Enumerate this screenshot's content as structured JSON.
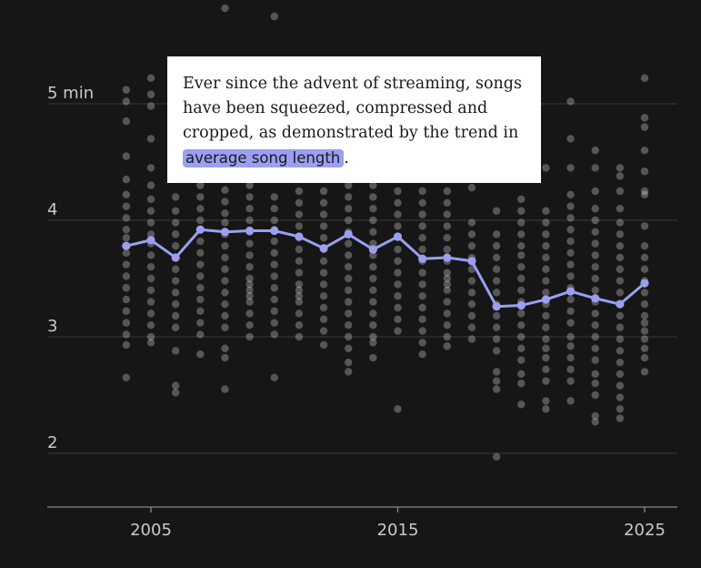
{
  "annotation": {
    "text_before": "Ever since the advent of streaming, songs have been squeezed, compressed and cropped, as demonstrated by the trend in ",
    "highlight": "average song length",
    "text_after": "."
  },
  "colors": {
    "background": "#161616",
    "line": "#9b9ff0",
    "dots": "#ffffff",
    "gridline": "#3a3a3a",
    "axis": "#8a8a8a",
    "text": "#c9c9c9"
  },
  "chart_data": {
    "type": "line",
    "title": "",
    "xlabel": "",
    "ylabel": "",
    "xlim": [
      2000,
      2026
    ],
    "ylim": [
      1.45,
      5.55
    ],
    "yticks": [
      5,
      4,
      3,
      2
    ],
    "ytick_labels": [
      "5 min",
      "4",
      "3",
      "2"
    ],
    "xticks": [
      2005,
      2015,
      2025
    ],
    "xtick_labels": [
      "2005",
      "2015",
      "2025"
    ],
    "grid": "horizontal",
    "series": [
      {
        "type": "line",
        "x": [
          2004,
          2005,
          2006,
          2007,
          2008,
          2009,
          2010,
          2011,
          2012,
          2013,
          2014,
          2015,
          2016,
          2017,
          2018,
          2019,
          2020,
          2021,
          2022,
          2023,
          2024,
          2025
        ],
        "values": [
          3.78,
          3.83,
          3.68,
          3.92,
          3.9,
          3.91,
          3.91,
          3.86,
          3.76,
          3.88,
          3.75,
          3.86,
          3.67,
          3.68,
          3.65,
          3.26,
          3.27,
          3.32,
          3.39,
          3.33,
          3.28,
          3.46
        ]
      },
      {
        "type": "scatter",
        "points_by_year": [
          {
            "x": 2004,
            "y": [
              5.12,
              5.02,
              4.85,
              4.55,
              4.35,
              4.22,
              4.12,
              4.02,
              3.92,
              3.85,
              3.72,
              3.62,
              3.52,
              3.42,
              3.32,
              3.22,
              3.12,
              3.02,
              2.93,
              2.65
            ]
          },
          {
            "x": 2005,
            "y": [
              5.22,
              5.08,
              4.98,
              4.7,
              4.45,
              4.3,
              4.18,
              4.08,
              3.98,
              3.88,
              3.8,
              3.7,
              3.6,
              3.5,
              3.4,
              3.3,
              3.2,
              3.1,
              3.0,
              2.95
            ]
          },
          {
            "x": 2006,
            "y": [
              4.2,
              4.08,
              3.98,
              3.88,
              3.78,
              3.68,
              3.58,
              3.48,
              3.38,
              3.28,
              3.18,
              3.08,
              2.88,
              2.58,
              2.52
            ]
          },
          {
            "x": 2007,
            "y": [
              4.52,
              4.4,
              4.3,
              4.2,
              4.1,
              4.0,
              3.92,
              3.82,
              3.72,
              3.62,
              3.52,
              3.42,
              3.32,
              3.22,
              3.12,
              3.02,
              2.85
            ]
          },
          {
            "x": 2008,
            "y": [
              5.82,
              4.8,
              4.38,
              4.26,
              4.16,
              4.06,
              3.98,
              3.88,
              3.78,
              3.68,
              3.58,
              3.48,
              3.38,
              3.28,
              3.18,
              3.08,
              2.9,
              2.82,
              2.55
            ]
          },
          {
            "x": 2009,
            "y": [
              4.4,
              4.3,
              4.2,
              4.1,
              4.0,
              3.9,
              3.8,
              3.7,
              3.6,
              3.5,
              3.45,
              3.4,
              3.35,
              3.3,
              3.2,
              3.1,
              3.0
            ]
          },
          {
            "x": 2010,
            "y": [
              5.75,
              4.2,
              4.1,
              4.0,
              3.92,
              3.82,
              3.72,
              3.62,
              3.52,
              3.42,
              3.32,
              3.22,
              3.12,
              3.02,
              2.65
            ]
          },
          {
            "x": 2011,
            "y": [
              4.45,
              4.35,
              4.25,
              4.15,
              4.05,
              3.95,
              3.85,
              3.75,
              3.65,
              3.55,
              3.45,
              3.4,
              3.35,
              3.3,
              3.2,
              3.1,
              3.0
            ]
          },
          {
            "x": 2012,
            "y": [
              4.25,
              4.15,
              4.05,
              3.95,
              3.85,
              3.75,
              3.65,
              3.55,
              3.45,
              3.35,
              3.25,
              3.15,
              3.05,
              2.93
            ]
          },
          {
            "x": 2013,
            "y": [
              4.4,
              4.3,
              4.2,
              4.1,
              4.0,
              3.9,
              3.8,
              3.7,
              3.6,
              3.5,
              3.4,
              3.3,
              3.2,
              3.1,
              3.0,
              2.9,
              2.78,
              2.7
            ]
          },
          {
            "x": 2014,
            "y": [
              4.3,
              4.2,
              4.1,
              4.0,
              3.9,
              3.8,
              3.7,
              3.6,
              3.5,
              3.4,
              3.3,
              3.2,
              3.1,
              3.0,
              2.95,
              2.82
            ]
          },
          {
            "x": 2015,
            "y": [
              4.35,
              4.25,
              4.15,
              4.05,
              3.95,
              3.85,
              3.75,
              3.65,
              3.55,
              3.45,
              3.35,
              3.25,
              3.15,
              3.05,
              2.38
            ]
          },
          {
            "x": 2016,
            "y": [
              4.25,
              4.15,
              4.05,
              3.95,
              3.85,
              3.75,
              3.65,
              3.55,
              3.45,
              3.35,
              3.25,
              3.15,
              3.05,
              2.95,
              2.85
            ]
          },
          {
            "x": 2017,
            "y": [
              4.25,
              4.15,
              4.05,
              3.95,
              3.85,
              3.75,
              3.65,
              3.55,
              3.5,
              3.45,
              3.4,
              3.3,
              3.2,
              3.1,
              3.0,
              2.92
            ]
          },
          {
            "x": 2018,
            "y": [
              4.28,
              3.98,
              3.88,
              3.78,
              3.68,
              3.58,
              3.48,
              3.38,
              3.28,
              3.18,
              3.08,
              2.98
            ]
          },
          {
            "x": 2019,
            "y": [
              4.08,
              3.88,
              3.78,
              3.68,
              3.58,
              3.48,
              3.38,
              3.28,
              3.18,
              3.08,
              2.98,
              2.88,
              2.7,
              2.62,
              2.55,
              1.97
            ]
          },
          {
            "x": 2020,
            "y": [
              4.18,
              4.08,
              3.98,
              3.88,
              3.78,
              3.7,
              3.6,
              3.5,
              3.4,
              3.3,
              3.2,
              3.1,
              3.0,
              2.9,
              2.8,
              2.68,
              2.6,
              2.42
            ]
          },
          {
            "x": 2021,
            "y": [
              4.45,
              4.08,
              3.98,
              3.88,
              3.78,
              3.68,
              3.58,
              3.48,
              3.38,
              3.28,
              3.18,
              3.08,
              2.98,
              2.9,
              2.82,
              2.72,
              2.62,
              2.45,
              2.38
            ]
          },
          {
            "x": 2022,
            "y": [
              5.02,
              4.7,
              4.45,
              4.22,
              4.12,
              4.02,
              3.92,
              3.82,
              3.72,
              3.62,
              3.52,
              3.42,
              3.32,
              3.22,
              3.12,
              3.0,
              2.92,
              2.82,
              2.72,
              2.62,
              2.45
            ]
          },
          {
            "x": 2023,
            "y": [
              4.6,
              4.45,
              4.25,
              4.1,
              4.0,
              3.9,
              3.8,
              3.7,
              3.6,
              3.5,
              3.4,
              3.3,
              3.2,
              3.1,
              3.0,
              2.9,
              2.8,
              2.68,
              2.6,
              2.5,
              2.32,
              2.27
            ]
          },
          {
            "x": 2024,
            "y": [
              4.45,
              4.38,
              4.25,
              4.1,
              3.98,
              3.88,
              3.78,
              3.68,
              3.58,
              3.48,
              3.38,
              3.28,
              3.18,
              3.08,
              2.98,
              2.88,
              2.78,
              2.68,
              2.58,
              2.48,
              2.38,
              2.3
            ]
          },
          {
            "x": 2025,
            "y": [
              5.22,
              4.88,
              4.8,
              4.6,
              4.42,
              4.25,
              4.22,
              3.95,
              3.78,
              3.68,
              3.58,
              3.48,
              3.38,
              3.28,
              3.18,
              3.12,
              3.05,
              2.98,
              2.9,
              2.82,
              2.7
            ]
          }
        ]
      }
    ]
  }
}
